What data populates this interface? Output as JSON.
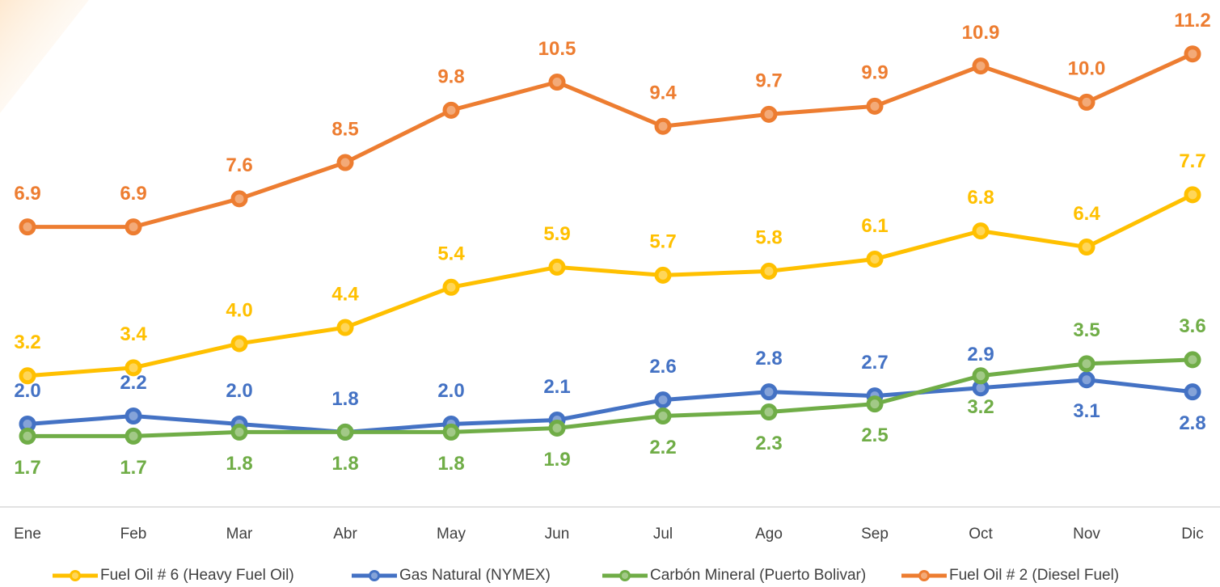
{
  "chart_data": {
    "type": "line",
    "categories": [
      "Ene",
      "Feb",
      "Mar",
      "Abr",
      "May",
      "Jun",
      "Jul",
      "Ago",
      "Sep",
      "Oct",
      "Nov",
      "Dic"
    ],
    "series": [
      {
        "name": "Fuel Oil # 6 (Heavy Fuel Oil)",
        "color": "#FFC000",
        "values": [
          3.2,
          3.4,
          4.0,
          4.4,
          5.4,
          5.9,
          5.7,
          5.8,
          6.1,
          6.8,
          6.4,
          7.7
        ],
        "value_labels": [
          "3.2",
          "3.4",
          "4.0",
          "4.4",
          "5.4",
          "5.9",
          "5.7",
          "5.8",
          "6.1",
          "6.8",
          "6.4",
          "7.7"
        ]
      },
      {
        "name": "Gas Natural (NYMEX)",
        "color": "#4472C4",
        "values": [
          2.0,
          2.2,
          2.0,
          1.8,
          2.0,
          2.1,
          2.6,
          2.8,
          2.7,
          2.9,
          3.1,
          2.8
        ],
        "value_labels": [
          "2.0",
          "2.2",
          "2.0",
          "1.8",
          "2.0",
          "2.1",
          "2.6",
          "2.8",
          "2.7",
          "2.9",
          "3.1",
          "2.8"
        ]
      },
      {
        "name": "Carbón Mineral (Puerto Bolivar)",
        "color": "#70AD47",
        "values": [
          1.7,
          1.7,
          1.8,
          1.8,
          1.8,
          1.9,
          2.2,
          2.3,
          2.5,
          3.2,
          3.5,
          3.6
        ],
        "value_labels": [
          "1.7",
          "1.7",
          "1.8",
          "1.8",
          "1.8",
          "1.9",
          "2.2",
          "2.3",
          "2.5",
          "3.2",
          "3.5",
          "3.6"
        ]
      },
      {
        "name": "Fuel Oil # 2 (Diesel Fuel)",
        "color": "#ED7D31",
        "values": [
          6.9,
          6.9,
          7.6,
          8.5,
          9.8,
          10.5,
          9.4,
          9.7,
          9.9,
          10.9,
          10.0,
          11.2
        ],
        "value_labels": [
          "6.9",
          "6.9",
          "7.6",
          "8.5",
          "9.8",
          "10.5",
          "9.4",
          "9.7",
          "9.9",
          "10.9",
          "10.0",
          "11.2"
        ]
      }
    ],
    "ylim": [
      0,
      12.5
    ],
    "legend": "bottom"
  }
}
